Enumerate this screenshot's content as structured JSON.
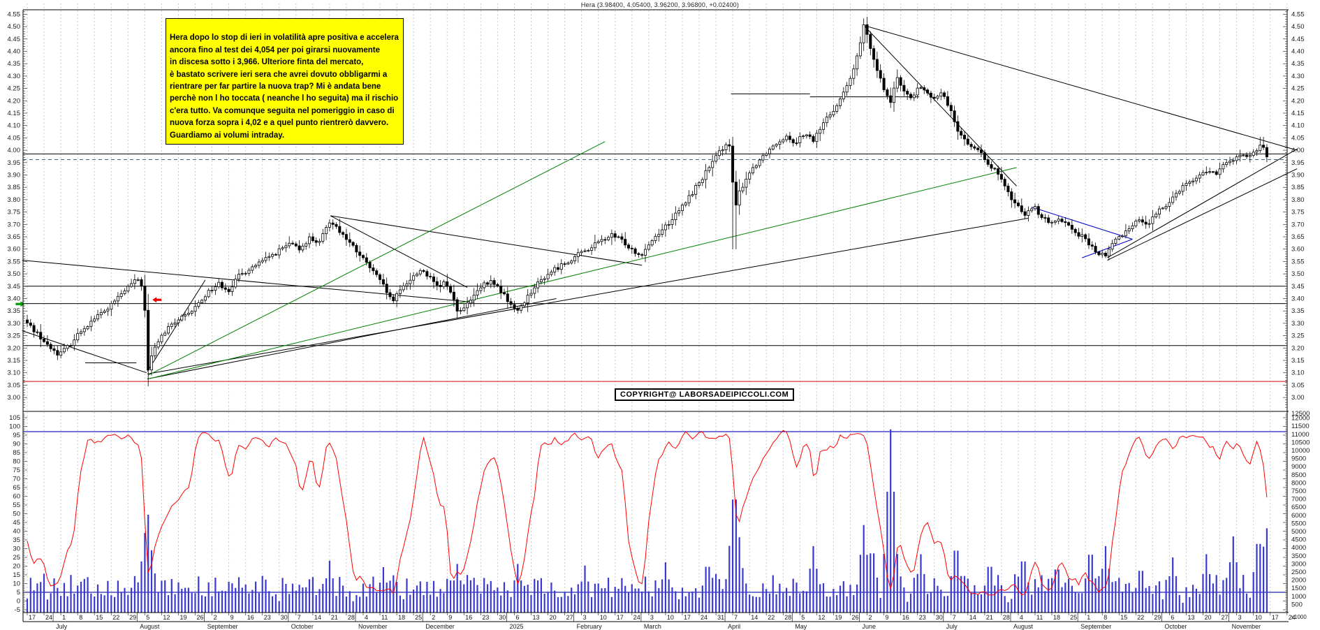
{
  "title": "Hera (3.98400, 4.05400, 3.96200, 3.96800,  +0.02400)",
  "annotation": {
    "text": "Hera dopo lo stop di ieri in volatilità apre positiva e accelera\nancora fino al test dei 4,054 per poi girarsi nuovamente\nin discesa sotto i 3,966. Ulteriore finta del mercato,\nè bastato scrivere ieri sera che avrei dovuto obbligarmi a\nrientrare per far partire la nuova trap? Mi è andata bene\nperchè non l ho toccata ( neanche l ho seguita) ma il rischio\nc'era tutto. Va comunque seguita nel pomeriggio in caso di\nnuova forza sopra i 4,02 e a quel punto rientrerò davvero.\nGuardiamo ai volumi intraday.",
    "bg": "#ffff00",
    "border": "#000000",
    "text_color": "#000000"
  },
  "copyright": "COPYRIGHT@ LABORSADEIPICCOLI.COM",
  "colors": {
    "candle_up": "#ffffff",
    "candle_down": "#000000",
    "candle_stroke": "#000000",
    "volume": "#3a3ad0",
    "oscillator": "#ff0000",
    "ref_blue": "#2020c0",
    "grid": "#c9c9c9",
    "border": "#000000",
    "green_line": "#008000",
    "blue_line": "#0000cc",
    "red_level": "#dd0000",
    "dashed_level": "#3a647e",
    "label": "#1a1a1a"
  },
  "chart_data": {
    "type": "candlestick+volume+oscillator",
    "symbol": "Hera",
    "last_quote": {
      "open": 3.984,
      "high": 4.054,
      "low": 3.962,
      "close": 3.968,
      "change": 0.024
    },
    "price_axis": {
      "min": 2.94,
      "max": 4.568,
      "tick_step": 0.05,
      "first_tick": 3.0,
      "last_tick": 4.55
    },
    "oscillator_axis": {
      "min": -5,
      "max": 105,
      "tick_step": 5,
      "ref_lines": [
        97,
        5
      ]
    },
    "volume_axis": {
      "first_tick": 500,
      "last_tick": 12500,
      "tick_step": 500,
      "unit": "x1000"
    },
    "date_axis": {
      "months": [
        {
          "name": "",
          "days": [
            17,
            24
          ]
        },
        {
          "name": "July",
          "days": [
            1,
            8,
            15,
            22,
            29
          ]
        },
        {
          "name": "August",
          "days": [
            5,
            12,
            19,
            26
          ]
        },
        {
          "name": "September",
          "days": [
            2,
            9,
            16,
            23,
            30
          ]
        },
        {
          "name": "October",
          "days": [
            7,
            14,
            21,
            28
          ]
        },
        {
          "name": "November",
          "days": [
            4,
            11,
            18,
            25
          ]
        },
        {
          "name": "December",
          "days": [
            2,
            9,
            16,
            23,
            30
          ]
        },
        {
          "name": "2025",
          "days": [
            6,
            13,
            20,
            27
          ]
        },
        {
          "name": "February",
          "days": [
            3,
            10,
            17,
            24
          ]
        },
        {
          "name": "March",
          "days": [
            3,
            10,
            17,
            24,
            31
          ]
        },
        {
          "name": "April",
          "days": [
            7,
            14,
            22,
            28
          ]
        },
        {
          "name": "May",
          "days": [
            5,
            12,
            19,
            26
          ]
        },
        {
          "name": "June",
          "days": [
            2,
            9,
            16,
            23,
            30
          ]
        },
        {
          "name": "July",
          "days": [
            7,
            14,
            21,
            28
          ]
        },
        {
          "name": "August",
          "days": [
            4,
            11,
            18,
            25
          ]
        },
        {
          "name": "September",
          "days": [
            1,
            8,
            15,
            22,
            29
          ]
        },
        {
          "name": "October",
          "days": [
            6,
            13,
            20,
            27
          ]
        },
        {
          "name": "November",
          "days": [
            3,
            10,
            17,
            24
          ]
        }
      ]
    },
    "close_anchors": [
      [
        0,
        3.3
      ],
      [
        0.6,
        3.26
      ],
      [
        1.2,
        3.21
      ],
      [
        1.9,
        3.175
      ],
      [
        2.5,
        3.21
      ],
      [
        3.2,
        3.27
      ],
      [
        4.0,
        3.32
      ],
      [
        4.8,
        3.36
      ],
      [
        5.5,
        3.41
      ],
      [
        6.2,
        3.46
      ],
      [
        6.7,
        3.48
      ],
      [
        6.95,
        3.42
      ],
      [
        7.05,
        3.28
      ],
      [
        7.15,
        3.09
      ],
      [
        7.35,
        3.16
      ],
      [
        7.8,
        3.23
      ],
      [
        8.4,
        3.28
      ],
      [
        9.0,
        3.315
      ],
      [
        9.6,
        3.335
      ],
      [
        10.2,
        3.38
      ],
      [
        10.8,
        3.43
      ],
      [
        11.4,
        3.46
      ],
      [
        12.0,
        3.435
      ],
      [
        12.6,
        3.49
      ],
      [
        13.2,
        3.52
      ],
      [
        14.0,
        3.55
      ],
      [
        14.8,
        3.585
      ],
      [
        15.6,
        3.62
      ],
      [
        16.2,
        3.6
      ],
      [
        16.8,
        3.645
      ],
      [
        17.4,
        3.625
      ],
      [
        18.05,
        3.72
      ],
      [
        18.4,
        3.69
      ],
      [
        18.9,
        3.65
      ],
      [
        19.5,
        3.6
      ],
      [
        20.1,
        3.55
      ],
      [
        20.7,
        3.5
      ],
      [
        21.3,
        3.44
      ],
      [
        21.7,
        3.385
      ],
      [
        22.1,
        3.42
      ],
      [
        22.5,
        3.46
      ],
      [
        23.0,
        3.49
      ],
      [
        23.5,
        3.52
      ],
      [
        24.0,
        3.48
      ],
      [
        24.5,
        3.44
      ],
      [
        24.9,
        3.47
      ],
      [
        25.3,
        3.41
      ],
      [
        25.7,
        3.34
      ],
      [
        26.2,
        3.375
      ],
      [
        26.7,
        3.42
      ],
      [
        27.2,
        3.455
      ],
      [
        27.7,
        3.47
      ],
      [
        28.2,
        3.43
      ],
      [
        28.7,
        3.385
      ],
      [
        29.1,
        3.345
      ],
      [
        29.5,
        3.38
      ],
      [
        30.0,
        3.43
      ],
      [
        30.6,
        3.475
      ],
      [
        31.2,
        3.51
      ],
      [
        31.8,
        3.535
      ],
      [
        32.4,
        3.56
      ],
      [
        33.0,
        3.585
      ],
      [
        33.6,
        3.61
      ],
      [
        34.2,
        3.635
      ],
      [
        34.8,
        3.655
      ],
      [
        35.4,
        3.635
      ],
      [
        36.0,
        3.6
      ],
      [
        36.5,
        3.575
      ],
      [
        37.0,
        3.62
      ],
      [
        37.5,
        3.66
      ],
      [
        38.1,
        3.7
      ],
      [
        38.7,
        3.745
      ],
      [
        39.3,
        3.8
      ],
      [
        39.9,
        3.86
      ],
      [
        40.5,
        3.92
      ],
      [
        41.1,
        3.98
      ],
      [
        41.6,
        4.03
      ],
      [
        41.9,
        4.0
      ],
      [
        42.1,
        3.74
      ],
      [
        42.4,
        3.83
      ],
      [
        42.9,
        3.9
      ],
      [
        43.5,
        3.955
      ],
      [
        44.1,
        4.0
      ],
      [
        44.7,
        4.035
      ],
      [
        45.2,
        4.06
      ],
      [
        45.7,
        4.03
      ],
      [
        46.2,
        4.065
      ],
      [
        46.8,
        4.04
      ],
      [
        47.4,
        4.11
      ],
      [
        48.0,
        4.165
      ],
      [
        48.6,
        4.23
      ],
      [
        49.2,
        4.32
      ],
      [
        49.8,
        4.5
      ],
      [
        50.2,
        4.42
      ],
      [
        50.6,
        4.33
      ],
      [
        51.0,
        4.245
      ],
      [
        51.4,
        4.2
      ],
      [
        51.8,
        4.285
      ],
      [
        52.2,
        4.245
      ],
      [
        52.7,
        4.205
      ],
      [
        53.1,
        4.26
      ],
      [
        53.5,
        4.235
      ],
      [
        54.0,
        4.205
      ],
      [
        54.5,
        4.23
      ],
      [
        55.0,
        4.16
      ],
      [
        55.4,
        4.085
      ],
      [
        55.9,
        4.035
      ],
      [
        56.4,
        4.005
      ],
      [
        56.9,
        3.975
      ],
      [
        57.4,
        3.935
      ],
      [
        57.9,
        3.89
      ],
      [
        58.4,
        3.825
      ],
      [
        58.9,
        3.775
      ],
      [
        59.4,
        3.745
      ],
      [
        59.9,
        3.775
      ],
      [
        60.4,
        3.73
      ],
      [
        60.9,
        3.7
      ],
      [
        61.4,
        3.73
      ],
      [
        61.9,
        3.7
      ],
      [
        62.4,
        3.67
      ],
      [
        62.9,
        3.645
      ],
      [
        63.4,
        3.605
      ],
      [
        63.8,
        3.58
      ],
      [
        64.2,
        3.575
      ],
      [
        64.7,
        3.63
      ],
      [
        65.2,
        3.66
      ],
      [
        65.7,
        3.695
      ],
      [
        66.2,
        3.72
      ],
      [
        66.7,
        3.7
      ],
      [
        67.2,
        3.74
      ],
      [
        67.7,
        3.775
      ],
      [
        68.2,
        3.81
      ],
      [
        68.7,
        3.85
      ],
      [
        69.2,
        3.875
      ],
      [
        69.7,
        3.89
      ],
      [
        70.2,
        3.92
      ],
      [
        70.7,
        3.9
      ],
      [
        71.2,
        3.935
      ],
      [
        71.7,
        3.96
      ],
      [
        72.2,
        3.98
      ],
      [
        72.7,
        3.965
      ],
      [
        73.0,
        3.99
      ],
      [
        73.3,
        4.01
      ],
      [
        73.5,
        4.035
      ],
      [
        73.7,
        3.995
      ],
      [
        73.8,
        3.968
      ]
    ],
    "special_days": {
      "crash_low": [
        7.15,
        3.045
      ],
      "april_low": [
        42.1,
        3.6
      ],
      "june_high": [
        49.8,
        4.525
      ],
      "last_high": [
        73.5,
        4.054
      ]
    },
    "volume_spikes": [
      [
        6.9,
        3800
      ],
      [
        7.05,
        5200
      ],
      [
        7.15,
        6600
      ],
      [
        7.35,
        4200
      ],
      [
        18.0,
        3200
      ],
      [
        21.2,
        2800
      ],
      [
        25.6,
        3000
      ],
      [
        29.2,
        3000
      ],
      [
        33.2,
        2900
      ],
      [
        38.0,
        3100
      ],
      [
        40.5,
        3400
      ],
      [
        41.9,
        4200
      ],
      [
        42.1,
        8400
      ],
      [
        42.3,
        5600
      ],
      [
        46.8,
        4100
      ],
      [
        49.8,
        5400
      ],
      [
        50.3,
        4400
      ],
      [
        51.4,
        11300
      ],
      [
        53.2,
        3600
      ],
      [
        55.3,
        4600
      ],
      [
        57.3,
        3400
      ],
      [
        59.3,
        3800
      ],
      [
        61.3,
        3200
      ],
      [
        63.3,
        4300
      ],
      [
        64.2,
        4100
      ],
      [
        66.3,
        3100
      ],
      [
        68.2,
        3400
      ],
      [
        70.2,
        3600
      ],
      [
        71.8,
        4700
      ],
      [
        73.3,
        5100
      ],
      [
        73.7,
        4900
      ],
      [
        73.8,
        5200
      ]
    ],
    "levels": [
      {
        "p": 3.985,
        "style": "solid",
        "color": "#000000"
      },
      {
        "p": 3.962,
        "style": "dashed",
        "color": "#3a647e"
      },
      {
        "p": 3.45,
        "style": "solid",
        "color": "#000000"
      },
      {
        "p": 3.38,
        "style": "solid",
        "color": "#000000"
      },
      {
        "p": 3.21,
        "style": "solid",
        "color": "#000000"
      },
      {
        "p": 3.065,
        "style": "solid",
        "color": "#dd0000"
      }
    ],
    "trendlines": [
      {
        "w1": -0.3,
        "p1": 3.555,
        "w2": 26.6,
        "p2": 3.385,
        "color": "#000000"
      },
      {
        "w1": -0.3,
        "p1": 3.27,
        "w2": 7.1,
        "p2": 3.1,
        "color": "#000000"
      },
      {
        "w1": 7.15,
        "p1": 3.095,
        "w2": 59.6,
        "p2": 3.725,
        "color": "#000000"
      },
      {
        "w1": 7.15,
        "p1": 3.075,
        "w2": 31.5,
        "p2": 3.4,
        "color": "#000000"
      },
      {
        "w1": 7.15,
        "p1": 3.105,
        "w2": 10.6,
        "p2": 3.475,
        "color": "#000000"
      },
      {
        "w1": 3.45,
        "p1": 3.14,
        "w2": 6.5,
        "p2": 3.14,
        "color": "#000000"
      },
      {
        "w1": 18.05,
        "p1": 3.735,
        "w2": 26.2,
        "p2": 3.445,
        "color": "#000000"
      },
      {
        "w1": 18.05,
        "p1": 3.735,
        "w2": 36.6,
        "p2": 3.535,
        "color": "#000000"
      },
      {
        "w1": 49.8,
        "p1": 4.505,
        "w2": 58.9,
        "p2": 3.855,
        "color": "#000000"
      },
      {
        "w1": 49.8,
        "p1": 4.505,
        "w2": 75.6,
        "p2": 4.0,
        "color": "#000000"
      },
      {
        "w1": 41.9,
        "p1": 4.228,
        "w2": 46.6,
        "p2": 4.228,
        "color": "#000000"
      },
      {
        "w1": 46.6,
        "p1": 4.216,
        "w2": 53.1,
        "p2": 4.216,
        "color": "#000000"
      },
      {
        "w1": 64.3,
        "p1": 3.565,
        "w2": 75.6,
        "p2": 4.005,
        "color": "#000000"
      },
      {
        "w1": 64.3,
        "p1": 3.555,
        "w2": 75.6,
        "p2": 3.925,
        "color": "#000000"
      },
      {
        "w1": 7.2,
        "p1": 3.09,
        "w2": 34.4,
        "p2": 4.035,
        "color": "#008000"
      },
      {
        "w1": 7.2,
        "p1": 3.075,
        "w2": 58.9,
        "p2": 3.93,
        "color": "#008000"
      },
      {
        "w1": 59.8,
        "p1": 3.77,
        "w2": 65.8,
        "p2": 3.64,
        "color": "#0000cc"
      },
      {
        "w1": 62.8,
        "p1": 3.565,
        "w2": 65.8,
        "p2": 3.64,
        "color": "#0000cc"
      }
    ],
    "arrows": [
      {
        "w": 7.45,
        "p": 3.395,
        "dir": "left",
        "color": "#ee0000"
      },
      {
        "w": -0.15,
        "p": 3.378,
        "dir": "right",
        "color": "#00a000"
      }
    ]
  }
}
